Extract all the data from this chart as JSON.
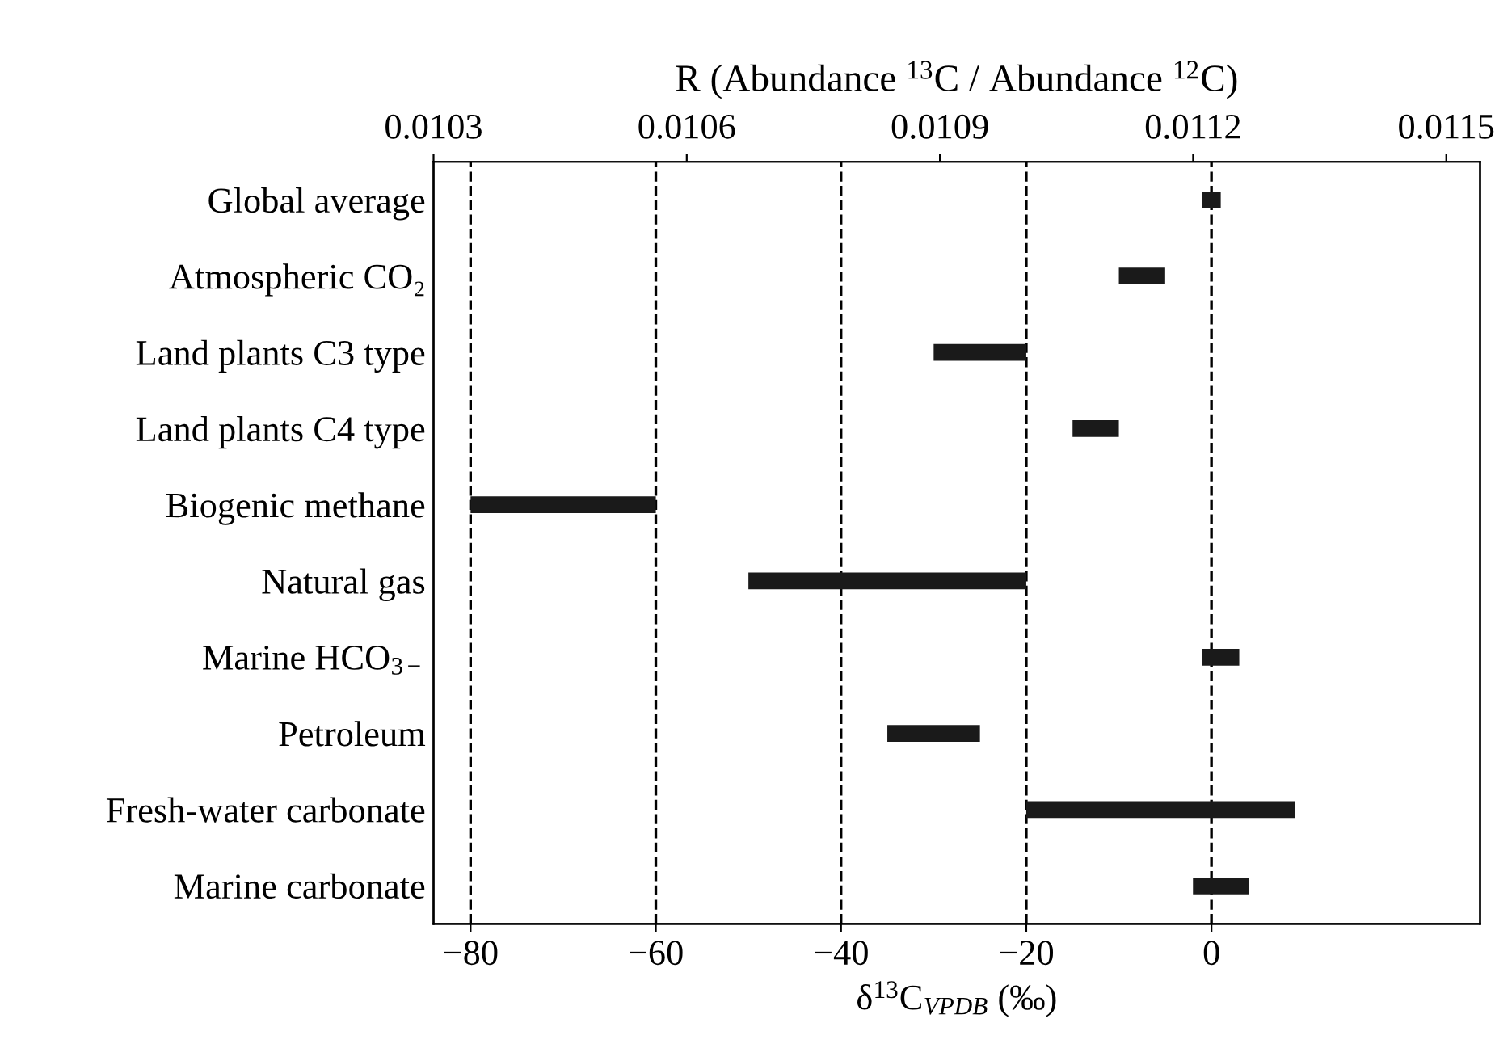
{
  "chart_data": {
    "type": "bar",
    "orientation": "horizontal",
    "categories": [
      "Global average",
      "Atmospheric CO₂",
      "Land plants C3 type",
      "Land plants C4 type",
      "Biogenic methane",
      "Natural gas",
      "Marine HCO$_{3−}$",
      "Petroleum",
      "Fresh-water carbonate",
      "Marine carbonate"
    ],
    "base": [
      -1,
      -10,
      -30,
      -15,
      -80,
      -50,
      -1,
      -35,
      -20,
      -2
    ],
    "values": [
      2,
      5,
      10,
      5,
      20,
      30,
      4,
      10,
      29,
      6
    ],
    "color": "#1a1a1a",
    "xlim": [
      -84,
      29
    ],
    "xticks": [
      -80,
      -60,
      -40,
      -20,
      0
    ],
    "x2lim": [
      0.0103,
      0.01154
    ],
    "x2ticks": [
      0.0103,
      0.0106,
      0.0109,
      0.0112,
      0.0115
    ],
    "xlabel": "δ$^{13}$C$_{VPDB}$ (‰)",
    "x2label": "R (Abundance $^{13}$C / Abundance $^{12}$C)",
    "grid": "x",
    "line_style": "dashed"
  }
}
